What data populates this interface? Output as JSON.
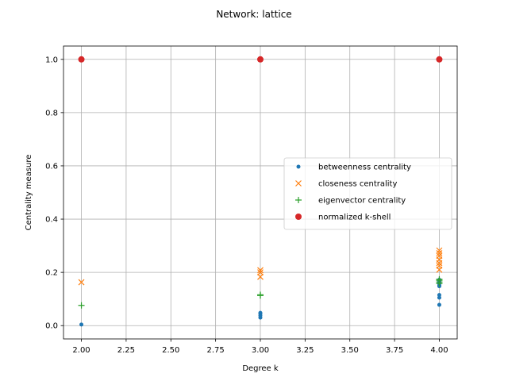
{
  "chart_data": {
    "type": "scatter",
    "title": "Network: lattice",
    "xlabel": "Degree k",
    "ylabel": "Centrality measure",
    "xlim": [
      1.9,
      4.1
    ],
    "ylim": [
      -0.05,
      1.05
    ],
    "xticks": [
      2.0,
      2.25,
      2.5,
      2.75,
      3.0,
      3.25,
      3.5,
      3.75,
      4.0
    ],
    "xtick_labels": [
      "2.00",
      "2.25",
      "2.50",
      "2.75",
      "3.00",
      "3.25",
      "3.50",
      "3.75",
      "4.00"
    ],
    "yticks": [
      0.0,
      0.2,
      0.4,
      0.6,
      0.8,
      1.0
    ],
    "ytick_labels": [
      "0.0",
      "0.2",
      "0.4",
      "0.6",
      "0.8",
      "1.0"
    ],
    "grid": true,
    "legend_position": "center-right",
    "series": [
      {
        "name": "betweenness centrality",
        "marker": "dot",
        "color": "#1f77b4",
        "x": [
          2,
          3,
          3,
          3,
          3,
          4,
          4,
          4,
          4,
          4,
          4,
          4,
          4
        ],
        "y": [
          0.004,
          0.03,
          0.038,
          0.045,
          0.048,
          0.078,
          0.105,
          0.115,
          0.148,
          0.152,
          0.16,
          0.168,
          0.172
        ]
      },
      {
        "name": "closeness centrality",
        "marker": "x",
        "color": "#ff7f0e",
        "x": [
          2,
          3,
          3,
          3,
          4,
          4,
          4,
          4,
          4,
          4,
          4
        ],
        "y": [
          0.163,
          0.183,
          0.2,
          0.208,
          0.21,
          0.225,
          0.235,
          0.248,
          0.262,
          0.272,
          0.282
        ]
      },
      {
        "name": "eigenvector centrality",
        "marker": "plus",
        "color": "#2ca02c",
        "x": [
          2,
          3,
          3,
          4,
          4,
          4,
          4
        ],
        "y": [
          0.076,
          0.113,
          0.116,
          0.158,
          0.164,
          0.17,
          0.174
        ]
      },
      {
        "name": "normalized k-shell",
        "marker": "circle",
        "color": "#d62728",
        "x": [
          2,
          3,
          4
        ],
        "y": [
          1.0,
          1.0,
          1.0
        ]
      }
    ]
  }
}
